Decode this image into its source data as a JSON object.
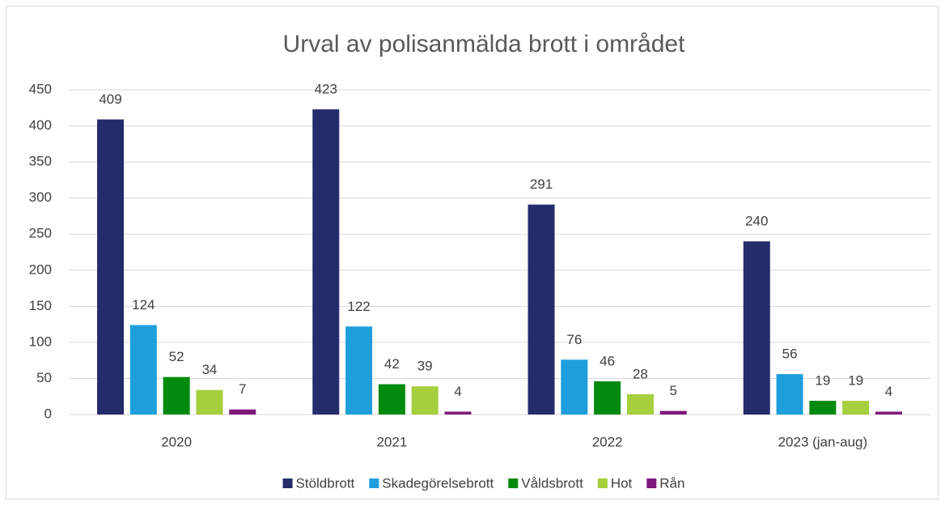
{
  "chart_data": {
    "type": "bar",
    "title": "Urval av polisanmälda brott i området",
    "categories": [
      "2020",
      "2021",
      "2022",
      "2023 (jan-aug)"
    ],
    "series": [
      {
        "name": "Stöldbrott",
        "color": "#252c6b",
        "values": [
          409,
          423,
          291,
          240
        ]
      },
      {
        "name": "Skadegörelsebrott",
        "color": "#1e9fdc",
        "values": [
          124,
          122,
          76,
          56
        ]
      },
      {
        "name": "Våldsbrott",
        "color": "#008a0e",
        "values": [
          52,
          42,
          46,
          19
        ]
      },
      {
        "name": "Hot",
        "color": "#a5cf3c",
        "values": [
          34,
          39,
          28,
          19
        ]
      },
      {
        "name": "Rån",
        "color": "#7e1a7c",
        "values": [
          7,
          4,
          5,
          4
        ]
      }
    ],
    "ylim": [
      0,
      450
    ],
    "yticks": [
      0,
      50,
      100,
      150,
      200,
      250,
      300,
      350,
      400,
      450
    ],
    "grid": true,
    "legend": "bottom"
  }
}
